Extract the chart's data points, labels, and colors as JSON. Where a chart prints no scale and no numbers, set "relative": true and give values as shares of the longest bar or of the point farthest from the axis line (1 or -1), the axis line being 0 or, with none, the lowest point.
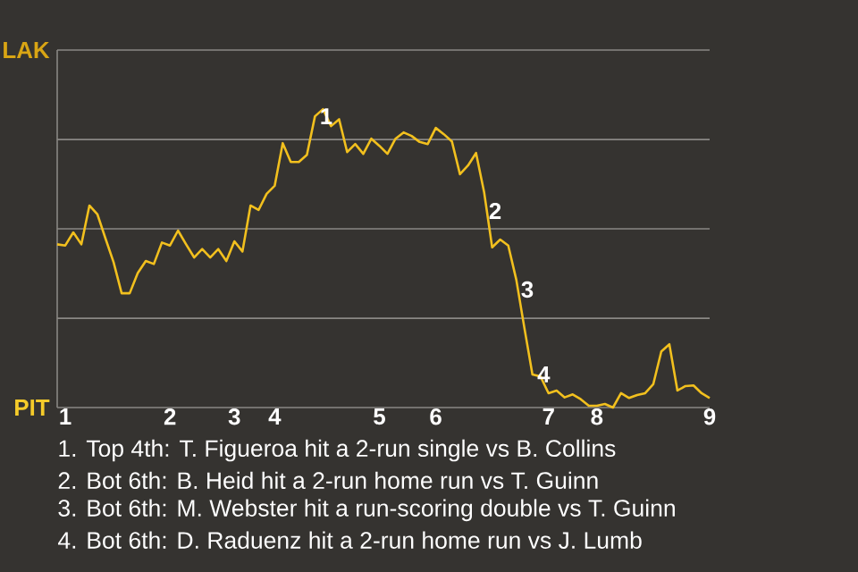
{
  "chart_data": {
    "type": "line",
    "color": "#f2c01e",
    "relative": true,
    "categories": [
      null,
      "1",
      null,
      null,
      null,
      null,
      null,
      null,
      null,
      null,
      null,
      null,
      null,
      null,
      "2",
      null,
      null,
      null,
      null,
      null,
      null,
      null,
      "3",
      null,
      null,
      null,
      null,
      "4",
      null,
      null,
      null,
      null,
      null,
      null,
      null,
      null,
      null,
      null,
      null,
      null,
      "5",
      null,
      null,
      null,
      null,
      null,
      null,
      "6",
      null,
      null,
      null,
      null,
      null,
      null,
      null,
      null,
      null,
      null,
      null,
      null,
      null,
      "7",
      null,
      null,
      null,
      null,
      null,
      "8",
      null,
      null,
      null,
      null,
      null,
      null,
      null,
      null,
      null,
      null,
      null,
      null,
      null,
      "9"
    ],
    "values": [
      0.547,
      0.543,
      0.587,
      0.547,
      0.677,
      0.647,
      0.566,
      0.487,
      0.383,
      0.383,
      0.451,
      0.491,
      0.481,
      0.553,
      0.543,
      0.593,
      0.547,
      0.503,
      0.531,
      0.503,
      0.531,
      0.491,
      0.557,
      0.523,
      0.677,
      0.662,
      0.716,
      0.743,
      0.886,
      0.823,
      0.823,
      0.847,
      0.976,
      1,
      0.943,
      0.966,
      0.856,
      0.883,
      0.85,
      0.901,
      0.877,
      0.85,
      0.901,
      0.922,
      0.91,
      0.89,
      0.883,
      0.937,
      0.916,
      0.892,
      0.782,
      0.811,
      0.853,
      0.722,
      0.537,
      0.563,
      0.543,
      0.428,
      0.267,
      0.111,
      0.104,
      0.048,
      0.057,
      0.034,
      0.044,
      0.028,
      0.006,
      0.006,
      0.012,
      0,
      0.048,
      0.032,
      0.042,
      0.048,
      0.078,
      0.188,
      0.212,
      0.057,
      0.072,
      0.074,
      0.048,
      0.032
    ],
    "ref_lines": [
      {
        "axis": "y",
        "value": 0.299,
        "color": "#8a8884"
      },
      {
        "axis": "y",
        "value": 0.599,
        "color": "#8a8884"
      },
      {
        "axis": "y",
        "value": 0.898,
        "color": "#8a8884"
      },
      {
        "axis": "y",
        "value": 1.198,
        "color": "#8a8884"
      }
    ],
    "annotations": [
      "LAK",
      "PIT",
      {
        "text": "1",
        "y": 0.976
      },
      "2",
      "3",
      {
        "text": "4",
        "y": 0.111
      },
      "1. Top 4th: T. Figueroa hit a 2-run single vs B. Collins",
      "2. Bot 6th: B. Heid hit a 2-run home run vs T. Guinn",
      "3. Bot 6th: M. Webster hit a run-scoring double vs T. Guinn",
      "4. Bot 6th: D. Raduenz hit a 2-run home run vs J. Lumb"
    ]
  }
}
